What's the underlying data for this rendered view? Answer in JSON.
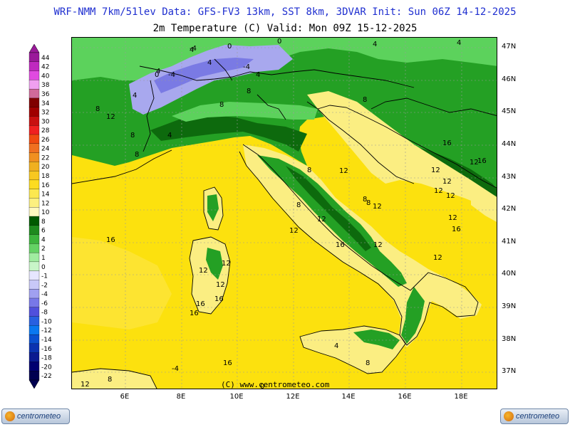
{
  "header": {
    "line1": "WRF-NMM 7km/51lev  Data: GFS-FV3 13km, SST 8km, 3DVAR  Init: Sun 06Z 14-12-2025",
    "line2": "2m Temperature (C)  Valid: Mon 09Z 15-12-2025"
  },
  "map": {
    "lat_labels": [
      "47N",
      "46N",
      "45N",
      "44N",
      "43N",
      "42N",
      "41N",
      "40N",
      "39N",
      "38N",
      "37N"
    ],
    "lon_labels": [
      "6E",
      "8E",
      "10E",
      "12E",
      "14E",
      "16E",
      "18E"
    ],
    "copyright": "(C) www.centrometeo.com",
    "contour_labels": [
      "0",
      "-4",
      "-4",
      "0",
      "4",
      "4",
      "4",
      "4",
      "-4",
      "0",
      "4",
      "4",
      "8",
      "4",
      "8",
      "12",
      "8",
      "8",
      "4",
      "8",
      "8",
      "8",
      "8",
      "12",
      "8",
      "8",
      "12",
      "12",
      "12",
      "12",
      "12",
      "12",
      "12",
      "16",
      "16",
      "12",
      "12",
      "16",
      "12",
      "12",
      "16",
      "16",
      "16",
      "16",
      "16",
      "12",
      "12",
      "12",
      "16",
      "4",
      "8",
      "8",
      "12",
      "-4",
      "0"
    ]
  },
  "legend": {
    "labels": [
      "44",
      "42",
      "40",
      "38",
      "36",
      "34",
      "32",
      "30",
      "28",
      "26",
      "24",
      "22",
      "20",
      "18",
      "16",
      "14",
      "12",
      "10",
      "8",
      "6",
      "4",
      "2",
      "1",
      "0",
      "-1",
      "-2",
      "-4",
      "-6",
      "-8",
      "-10",
      "-12",
      "-14",
      "-16",
      "-18",
      "-20",
      "-22"
    ],
    "colors": [
      "#9a1a9a",
      "#bf29bf",
      "#e04ae0",
      "#f0a0f0",
      "#d06a9a",
      "#800000",
      "#a00000",
      "#c81010",
      "#f02020",
      "#f04a10",
      "#f07020",
      "#f09020",
      "#f0b020",
      "#f8c820",
      "#fcdc20",
      "#fce850",
      "#fcf080",
      "#fff9c0",
      "#005a00",
      "#1e8a1e",
      "#3cb43c",
      "#64d264",
      "#a0eca0",
      "#c8f5c8",
      "#e6e6ff",
      "#c8c8f8",
      "#a0a0f0",
      "#7878e8",
      "#5050dc",
      "#2860e0",
      "#0a78f0",
      "#0a50d0",
      "#0a32b0",
      "#0a1a90",
      "#000070",
      "#000050"
    ]
  },
  "logos": {
    "left": "centrometeo",
    "right": "centrometeo"
  },
  "colors": {
    "sea": "#fce10e",
    "warm_land": "#fbee82",
    "green_mid": "#1f8f1f",
    "green_dark": "#0b5e0b",
    "green_light": "#55c855",
    "cold": "#a8a8ee",
    "border": "#000000"
  }
}
